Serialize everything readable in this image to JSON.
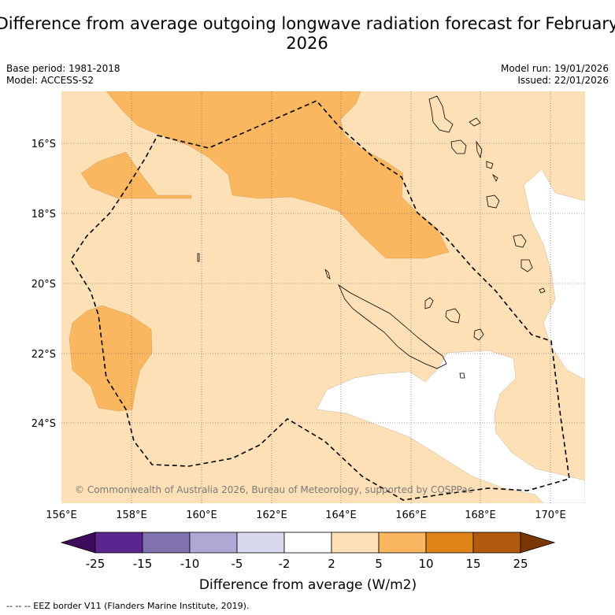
{
  "title": "Difference from average outgoing longwave radiation forecast for February 2026",
  "meta": {
    "base_period": "Base period: 1981-2018",
    "model": "Model: ACCESS-S2",
    "model_run": "Model run: 19/01/2026",
    "issued": "Issued: 22/01/2026"
  },
  "map": {
    "lon_ticks": [
      "156°E",
      "158°E",
      "160°E",
      "162°E",
      "164°E",
      "166°E",
      "168°E",
      "170°E"
    ],
    "lat_ticks": [
      "16°S",
      "18°S",
      "20°S",
      "22°S",
      "24°S"
    ],
    "copyright": "© Commonwealth of Australia 2026, Bureau of Meteorology, supported by COSPPac"
  },
  "colorbar": {
    "labels": [
      "-25",
      "-15",
      "-10",
      "-5",
      "-2",
      "2",
      "5",
      "10",
      "15",
      "25"
    ],
    "colors": [
      "#3d0a5c",
      "#5b2590",
      "#8072ad",
      "#b0a8d4",
      "#d8d9ec",
      "#ffffff",
      "#fde0b6",
      "#fbb660",
      "#e08316",
      "#b05a0e",
      "#7a3604"
    ],
    "xlabel": "Difference from average (W/m2)"
  },
  "footer": "-- -- -- EEZ border V11 (Flanders Marine Institute, 2019)."
}
